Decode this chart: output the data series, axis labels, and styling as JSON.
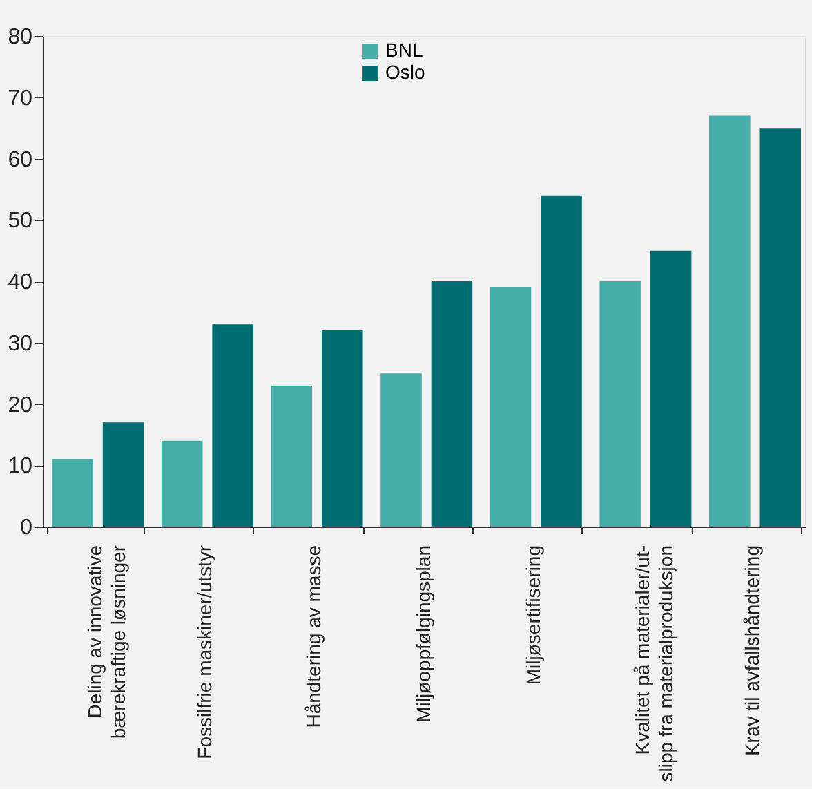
{
  "chart_data": {
    "type": "bar",
    "categories": [
      "Deling av innovative\nbærekraftige løsninger",
      "Fossilfrie maskiner/utstyr",
      "Håndtering av masse",
      "Miljøoppfølgingsplan",
      "Miljøsertifisering",
      "Kvalitet på materialer/ut-\nslipp fra materialproduksjon",
      "Krav til avfallshåndtering"
    ],
    "series": [
      {
        "name": "BNL",
        "color": "#46aea9",
        "values": [
          11,
          14,
          23,
          25,
          39,
          40,
          67
        ]
      },
      {
        "name": "Oslo",
        "color": "#006d73",
        "values": [
          17,
          33,
          32,
          40,
          54,
          45,
          65
        ]
      }
    ],
    "ylim": [
      0,
      80
    ],
    "yticks": [
      0,
      10,
      20,
      30,
      40,
      50,
      60,
      70,
      80
    ],
    "grid": false,
    "legend": "top"
  }
}
